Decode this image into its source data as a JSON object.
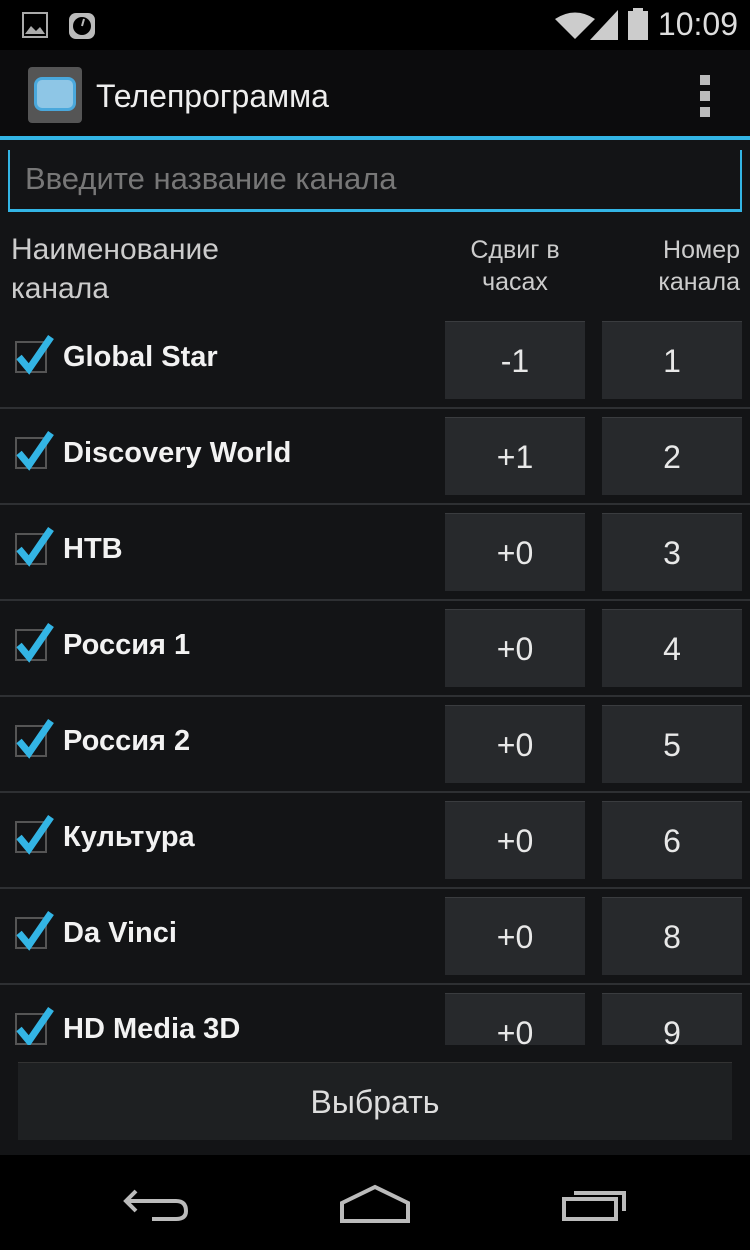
{
  "status_bar": {
    "time": "10:09",
    "icons": [
      "picture-icon",
      "clock-icon",
      "wifi-icon",
      "signal-icon",
      "battery-icon"
    ]
  },
  "action_bar": {
    "title": "Телепрограмма",
    "icon": "tv-icon",
    "menu_icon": "overflow-menu-icon"
  },
  "search": {
    "placeholder": "Введите название канала",
    "value": ""
  },
  "headers": {
    "name": "Наименование канала",
    "shift": "Сдвиг в часах",
    "number": "Номер канала"
  },
  "channels": [
    {
      "name": "Global Star",
      "shift": "-1",
      "number": "1",
      "checked": true
    },
    {
      "name": "Discovery World",
      "shift": "+1",
      "number": "2",
      "checked": true
    },
    {
      "name": "НТВ",
      "shift": "+0",
      "number": "3",
      "checked": true
    },
    {
      "name": "Россия 1",
      "shift": "+0",
      "number": "4",
      "checked": true
    },
    {
      "name": "Россия 2",
      "shift": "+0",
      "number": "5",
      "checked": true
    },
    {
      "name": "Культура",
      "shift": "+0",
      "number": "6",
      "checked": true
    },
    {
      "name": "Da Vinci",
      "shift": "+0",
      "number": "8",
      "checked": true
    },
    {
      "name": "HD Media 3D",
      "shift": "+0",
      "number": "9",
      "checked": true
    }
  ],
  "select_button": "Выбрать",
  "colors": {
    "accent": "#33b5e5",
    "background": "#131416"
  }
}
